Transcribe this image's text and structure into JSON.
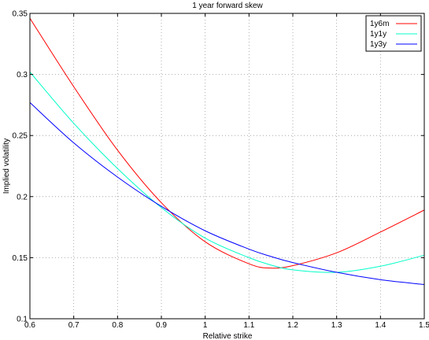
{
  "chart_data": {
    "type": "line",
    "title": "1 year forward skew",
    "xlabel": "Relative strike",
    "ylabel": "Implied volatility",
    "xlim": [
      0.6,
      1.5
    ],
    "ylim": [
      0.1,
      0.35
    ],
    "xticks": [
      "0.6",
      "0.7",
      "0.8",
      "0.9",
      "1",
      "1.1",
      "1.2",
      "1.3",
      "1.4",
      "1.5"
    ],
    "yticks": [
      "0.1",
      "0.15",
      "0.2",
      "0.25",
      "0.3",
      "0.35"
    ],
    "grid": true,
    "legend_position": "top-right",
    "x": [
      0.6,
      0.7,
      0.8,
      0.9,
      1.0,
      1.1,
      1.15,
      1.2,
      1.3,
      1.4,
      1.5
    ],
    "series": [
      {
        "name": "1y6m",
        "color": "#ff0000",
        "values": [
          0.346,
          0.29,
          0.238,
          0.195,
          0.163,
          0.145,
          0.1415,
          0.1435,
          0.154,
          0.171,
          0.189
        ]
      },
      {
        "name": "1y1y",
        "color": "#00ffc8",
        "values": [
          0.302,
          0.26,
          0.223,
          0.191,
          0.166,
          0.15,
          0.144,
          0.14,
          0.138,
          0.143,
          0.152
        ]
      },
      {
        "name": "1y3y",
        "color": "#0000ff",
        "values": [
          0.277,
          0.244,
          0.216,
          0.192,
          0.172,
          0.157,
          0.151,
          0.146,
          0.138,
          0.132,
          0.128
        ]
      }
    ]
  }
}
